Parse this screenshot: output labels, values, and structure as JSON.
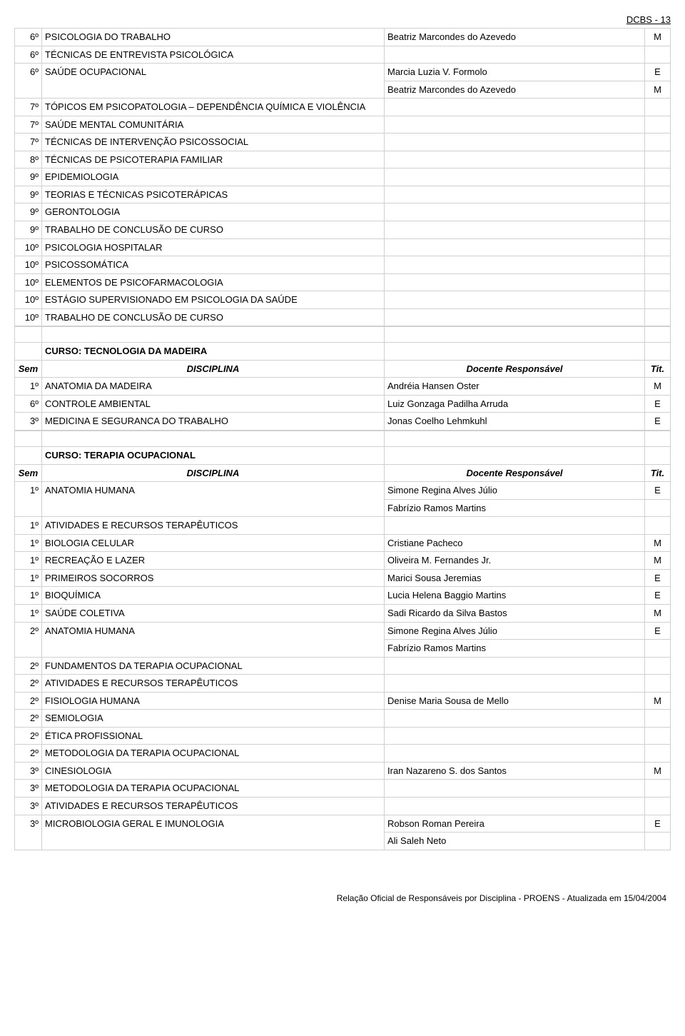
{
  "header": {
    "page_label": "DCBS - 13"
  },
  "top_table": {
    "rows": [
      {
        "sem": "6º",
        "disc": "PSICOLOGIA DO TRABALHO",
        "doc": "Beatriz Marcondes do Azevedo",
        "tit": "M"
      },
      {
        "sem": "6º",
        "disc": "TÉCNICAS DE ENTREVISTA PSICOLÓGICA",
        "doc": "",
        "tit": ""
      },
      {
        "sem": "6º",
        "disc": "SAÚDE OCUPACIONAL",
        "doc": "Marcia Luzia V. Formolo",
        "tit": "E",
        "rowspan": 2
      },
      {
        "doc": "Beatriz Marcondes do Azevedo",
        "tit": "M"
      },
      {
        "sem": "7º",
        "disc": "TÓPICOS EM PSICOPATOLOGIA – DEPENDÊNCIA QUÍMICA E VIOLÊNCIA",
        "doc": "",
        "tit": ""
      },
      {
        "sem": "7º",
        "disc": "SAÚDE MENTAL COMUNITÁRIA",
        "doc": "",
        "tit": ""
      },
      {
        "sem": "7º",
        "disc": "TÉCNICAS DE INTERVENÇÃO PSICOSSOCIAL",
        "doc": "",
        "tit": ""
      },
      {
        "sem": "8º",
        "disc": "TÉCNICAS DE PSICOTERAPIA FAMILIAR",
        "doc": "",
        "tit": ""
      },
      {
        "sem": "9º",
        "disc": "EPIDEMIOLOGIA",
        "doc": "",
        "tit": ""
      },
      {
        "sem": "9º",
        "disc": "TEORIAS E TÉCNICAS PSICOTERÁPICAS",
        "doc": "",
        "tit": ""
      },
      {
        "sem": "9º",
        "disc": "GERONTOLOGIA",
        "doc": "",
        "tit": ""
      },
      {
        "sem": "9º",
        "disc": "TRABALHO DE CONCLUSÃO DE CURSO",
        "doc": "",
        "tit": ""
      },
      {
        "sem": "10º",
        "disc": "PSICOLOGIA HOSPITALAR",
        "doc": "",
        "tit": ""
      },
      {
        "sem": "10º",
        "disc": "PSICOSSOMÁTICA",
        "doc": "",
        "tit": ""
      },
      {
        "sem": "10º",
        "disc": "ELEMENTOS DE PSICOFARMACOLOGIA",
        "doc": "",
        "tit": ""
      },
      {
        "sem": "10º",
        "disc": "ESTÁGIO SUPERVISIONADO EM PSICOLOGIA DA SAÚDE",
        "doc": "",
        "tit": ""
      },
      {
        "sem": "10º",
        "disc": "TRABALHO DE CONCLUSÃO DE CURSO",
        "doc": "",
        "tit": ""
      }
    ]
  },
  "course2": {
    "title": "CURSO: TECNOLOGIA DA MADEIRA",
    "head": {
      "sem": "Sem",
      "disc": "DISCIPLINA",
      "doc": "Docente Responsável",
      "tit": "Tit."
    },
    "rows": [
      {
        "sem": "1º",
        "disc": "ANATOMIA DA MADEIRA",
        "doc": "Andréia Hansen Oster",
        "tit": "M"
      },
      {
        "sem": "6º",
        "disc": "CONTROLE AMBIENTAL",
        "doc": "Luiz Gonzaga Padilha Arruda",
        "tit": "E"
      },
      {
        "sem": "3º",
        "disc": "MEDICINA E SEGURANCA DO TRABALHO",
        "doc": "Jonas Coelho Lehmkuhl",
        "tit": "E"
      }
    ]
  },
  "course3": {
    "title": "CURSO: TERAPIA OCUPACIONAL",
    "head": {
      "sem": "Sem",
      "disc": "DISCIPLINA",
      "doc": "Docente Responsável",
      "tit": "Tit."
    },
    "rows": [
      {
        "sem": "1º",
        "disc": "ANATOMIA HUMANA",
        "doc": "Simone Regina Alves Júlio",
        "tit": "E",
        "rowspan": 2
      },
      {
        "doc": "Fabrízio Ramos Martins",
        "tit": ""
      },
      {
        "sem": "1º",
        "disc": "ATIVIDADES E RECURSOS TERAPÊUTICOS",
        "doc": "",
        "tit": ""
      },
      {
        "sem": "1º",
        "disc": "BIOLOGIA CELULAR",
        "doc": "Cristiane Pacheco",
        "tit": "M"
      },
      {
        "sem": "1º",
        "disc": "RECREAÇÃO E LAZER",
        "doc": "Oliveira M. Fernandes Jr.",
        "tit": "M"
      },
      {
        "sem": "1º",
        "disc": "PRIMEIROS SOCORROS",
        "doc": "Marici Sousa Jeremias",
        "tit": "E"
      },
      {
        "sem": "1º",
        "disc": "BIOQUÍMICA",
        "doc": "Lucia Helena Baggio Martins",
        "tit": "E"
      },
      {
        "sem": "1º",
        "disc": "SAÚDE COLETIVA",
        "doc": "Sadi Ricardo da Silva Bastos",
        "tit": "M"
      },
      {
        "sem": "2º",
        "disc": "ANATOMIA HUMANA",
        "doc": "Simone Regina Alves Júlio",
        "tit": "E",
        "rowspan": 2
      },
      {
        "doc": "Fabrízio Ramos Martins",
        "tit": ""
      },
      {
        "sem": "2º",
        "disc": "FUNDAMENTOS DA TERAPIA OCUPACIONAL",
        "doc": "",
        "tit": ""
      },
      {
        "sem": "2º",
        "disc": "ATIVIDADES E RECURSOS TERAPÊUTICOS",
        "doc": "",
        "tit": ""
      },
      {
        "sem": "2º",
        "disc": "FISIOLOGIA HUMANA",
        "doc": "Denise Maria Sousa de Mello",
        "tit": "M"
      },
      {
        "sem": "2º",
        "disc": "SEMIOLOGIA",
        "doc": "",
        "tit": ""
      },
      {
        "sem": "2º",
        "disc": "ÉTICA PROFISSIONAL",
        "doc": "",
        "tit": ""
      },
      {
        "sem": "2º",
        "disc": "METODOLOGIA DA TERAPIA OCUPACIONAL",
        "doc": "",
        "tit": ""
      },
      {
        "sem": "3º",
        "disc": "CINESIOLOGIA",
        "doc": "Iran Nazareno S. dos Santos",
        "tit": "M"
      },
      {
        "sem": "3º",
        "disc": "METODOLOGIA DA TERAPIA OCUPACIONAL",
        "doc": "",
        "tit": ""
      },
      {
        "sem": "3º",
        "disc": "ATIVIDADES E RECURSOS TERAPÊUTICOS",
        "doc": "",
        "tit": ""
      },
      {
        "sem": "3º",
        "disc": "MICROBIOLOGIA GERAL E IMUNOLOGIA",
        "doc": "Robson Roman Pereira",
        "tit": "E",
        "rowspan": 2
      },
      {
        "doc": "Ali Saleh Neto",
        "tit": ""
      }
    ]
  },
  "footer": "Relação Oficial de Responsáveis por Disciplina - PROENS - Atualizada em 15/04/2004"
}
